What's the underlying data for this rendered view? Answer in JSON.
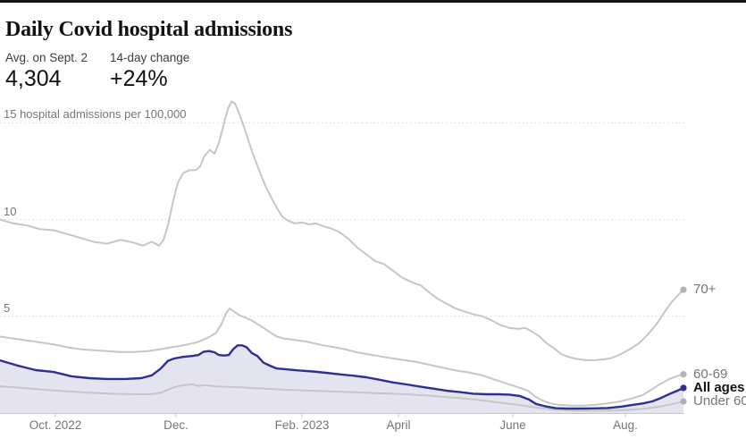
{
  "header": {
    "title": "Daily Covid hospital admissions",
    "stats": [
      {
        "label": "Avg. on Sept. 2",
        "value": "4,304"
      },
      {
        "label": "14-day change",
        "value": "+24%"
      }
    ]
  },
  "chart_data": {
    "type": "line",
    "title": "Daily Covid hospital admissions",
    "ylabel": "hospital admissions per 100,000",
    "xlim": [
      0,
      765
    ],
    "ylim": [
      0,
      17.05
    ],
    "grid": "dotted horizontal",
    "legend_position": "right-of-line-endpoints",
    "colors": {
      "gray_line": "#c6c6c6",
      "gray_dot": "#b3b3b3",
      "blue_line": "#2e2e96",
      "area_fill": "#e4e4f1",
      "gridline": "#d9d9d9",
      "axis": "#c9c9c9",
      "axis_text": "#767676",
      "label_gray": "#757575",
      "label_black": "#121212"
    },
    "yticks": [
      {
        "value": 5,
        "label": "5"
      },
      {
        "value": 10,
        "label": "10"
      },
      {
        "value": 15,
        "label": "15 hospital admissions per 100,000"
      }
    ],
    "xticks": [
      {
        "x": 62,
        "label": "Oct. 2022"
      },
      {
        "x": 197,
        "label": "Dec."
      },
      {
        "x": 338,
        "label": "Feb. 2023"
      },
      {
        "x": 446,
        "label": "April"
      },
      {
        "x": 574,
        "label": "June"
      },
      {
        "x": 700,
        "label": "Aug."
      }
    ],
    "series": [
      {
        "name": "70+",
        "color": "#c6c6c6",
        "width": 2,
        "area": false,
        "bold_label": false,
        "points": [
          [
            0,
            10.0
          ],
          [
            15,
            9.8
          ],
          [
            30,
            9.7
          ],
          [
            45,
            9.5
          ],
          [
            60,
            9.45
          ],
          [
            75,
            9.25
          ],
          [
            90,
            9.05
          ],
          [
            105,
            8.85
          ],
          [
            120,
            8.75
          ],
          [
            135,
            8.95
          ],
          [
            150,
            8.8
          ],
          [
            160,
            8.65
          ],
          [
            170,
            8.85
          ],
          [
            178,
            8.65
          ],
          [
            183,
            8.95
          ],
          [
            188,
            9.7
          ],
          [
            193,
            10.8
          ],
          [
            199,
            11.9
          ],
          [
            205,
            12.4
          ],
          [
            212,
            12.55
          ],
          [
            219,
            12.55
          ],
          [
            224,
            12.75
          ],
          [
            229,
            13.3
          ],
          [
            235,
            13.6
          ],
          [
            240,
            13.4
          ],
          [
            245,
            13.95
          ],
          [
            250,
            14.85
          ],
          [
            255,
            15.7
          ],
          [
            259,
            16.1
          ],
          [
            263,
            16.0
          ],
          [
            268,
            15.45
          ],
          [
            273,
            14.8
          ],
          [
            278,
            14.1
          ],
          [
            283,
            13.4
          ],
          [
            288,
            12.8
          ],
          [
            293,
            12.2
          ],
          [
            298,
            11.65
          ],
          [
            304,
            11.1
          ],
          [
            310,
            10.6
          ],
          [
            316,
            10.15
          ],
          [
            322,
            9.95
          ],
          [
            330,
            9.8
          ],
          [
            338,
            9.85
          ],
          [
            346,
            9.75
          ],
          [
            354,
            9.8
          ],
          [
            362,
            9.65
          ],
          [
            370,
            9.55
          ],
          [
            380,
            9.35
          ],
          [
            390,
            9.0
          ],
          [
            400,
            8.55
          ],
          [
            410,
            8.2
          ],
          [
            420,
            7.85
          ],
          [
            430,
            7.7
          ],
          [
            440,
            7.35
          ],
          [
            450,
            7.0
          ],
          [
            457,
            6.85
          ],
          [
            464,
            6.7
          ],
          [
            471,
            6.6
          ],
          [
            480,
            6.25
          ],
          [
            490,
            5.9
          ],
          [
            500,
            5.65
          ],
          [
            510,
            5.4
          ],
          [
            520,
            5.25
          ],
          [
            530,
            5.1
          ],
          [
            540,
            5.0
          ],
          [
            550,
            4.8
          ],
          [
            560,
            4.55
          ],
          [
            570,
            4.4
          ],
          [
            580,
            4.35
          ],
          [
            588,
            4.4
          ],
          [
            596,
            4.2
          ],
          [
            604,
            3.95
          ],
          [
            612,
            3.6
          ],
          [
            620,
            3.35
          ],
          [
            628,
            3.05
          ],
          [
            636,
            2.9
          ],
          [
            645,
            2.8
          ],
          [
            655,
            2.73
          ],
          [
            665,
            2.73
          ],
          [
            675,
            2.77
          ],
          [
            685,
            2.85
          ],
          [
            695,
            3.05
          ],
          [
            705,
            3.3
          ],
          [
            715,
            3.6
          ],
          [
            725,
            4.05
          ],
          [
            735,
            4.6
          ],
          [
            745,
            5.3
          ],
          [
            752,
            5.75
          ],
          [
            758,
            6.05
          ],
          [
            765,
            6.37
          ]
        ]
      },
      {
        "name": "60-69",
        "color": "#c6c6c6",
        "width": 2,
        "area": false,
        "bold_label": false,
        "points": [
          [
            0,
            3.95
          ],
          [
            15,
            3.85
          ],
          [
            30,
            3.75
          ],
          [
            45,
            3.65
          ],
          [
            60,
            3.55
          ],
          [
            75,
            3.4
          ],
          [
            90,
            3.3
          ],
          [
            105,
            3.25
          ],
          [
            120,
            3.2
          ],
          [
            135,
            3.15
          ],
          [
            150,
            3.15
          ],
          [
            165,
            3.2
          ],
          [
            180,
            3.3
          ],
          [
            192,
            3.4
          ],
          [
            200,
            3.45
          ],
          [
            210,
            3.55
          ],
          [
            220,
            3.65
          ],
          [
            228,
            3.8
          ],
          [
            235,
            3.95
          ],
          [
            242,
            4.15
          ],
          [
            248,
            4.6
          ],
          [
            253,
            5.15
          ],
          [
            257,
            5.4
          ],
          [
            262,
            5.25
          ],
          [
            268,
            5.05
          ],
          [
            274,
            4.95
          ],
          [
            281,
            4.8
          ],
          [
            288,
            4.6
          ],
          [
            295,
            4.4
          ],
          [
            303,
            4.15
          ],
          [
            310,
            3.95
          ],
          [
            318,
            3.85
          ],
          [
            326,
            3.8
          ],
          [
            334,
            3.75
          ],
          [
            342,
            3.7
          ],
          [
            352,
            3.6
          ],
          [
            362,
            3.5
          ],
          [
            374,
            3.4
          ],
          [
            386,
            3.3
          ],
          [
            398,
            3.15
          ],
          [
            410,
            3.05
          ],
          [
            423,
            2.95
          ],
          [
            436,
            2.85
          ],
          [
            450,
            2.75
          ],
          [
            465,
            2.65
          ],
          [
            480,
            2.5
          ],
          [
            495,
            2.35
          ],
          [
            510,
            2.2
          ],
          [
            525,
            2.1
          ],
          [
            540,
            1.95
          ],
          [
            552,
            1.75
          ],
          [
            562,
            1.6
          ],
          [
            572,
            1.45
          ],
          [
            582,
            1.3
          ],
          [
            591,
            1.15
          ],
          [
            599,
            0.85
          ],
          [
            607,
            0.65
          ],
          [
            616,
            0.5
          ],
          [
            626,
            0.42
          ],
          [
            640,
            0.38
          ],
          [
            653,
            0.38
          ],
          [
            666,
            0.42
          ],
          [
            680,
            0.5
          ],
          [
            694,
            0.6
          ],
          [
            707,
            0.75
          ],
          [
            719,
            0.92
          ],
          [
            729,
            1.2
          ],
          [
            739,
            1.5
          ],
          [
            749,
            1.75
          ],
          [
            757,
            1.9
          ],
          [
            765,
            2.0
          ]
        ]
      },
      {
        "name": "Under 60",
        "color": "#c6c6c6",
        "width": 2,
        "area": false,
        "bold_label": false,
        "points": [
          [
            0,
            1.38
          ],
          [
            25,
            1.3
          ],
          [
            50,
            1.2
          ],
          [
            75,
            1.12
          ],
          [
            100,
            1.05
          ],
          [
            125,
            1.0
          ],
          [
            150,
            0.97
          ],
          [
            168,
            0.97
          ],
          [
            180,
            1.05
          ],
          [
            190,
            1.25
          ],
          [
            200,
            1.4
          ],
          [
            208,
            1.45
          ],
          [
            216,
            1.48
          ],
          [
            222,
            1.4
          ],
          [
            230,
            1.44
          ],
          [
            240,
            1.38
          ],
          [
            255,
            1.35
          ],
          [
            270,
            1.33
          ],
          [
            285,
            1.28
          ],
          [
            300,
            1.25
          ],
          [
            320,
            1.2
          ],
          [
            340,
            1.17
          ],
          [
            360,
            1.13
          ],
          [
            380,
            1.1
          ],
          [
            400,
            1.07
          ],
          [
            420,
            1.03
          ],
          [
            440,
            1.0
          ],
          [
            460,
            0.95
          ],
          [
            480,
            0.9
          ],
          [
            500,
            0.82
          ],
          [
            520,
            0.75
          ],
          [
            540,
            0.66
          ],
          [
            555,
            0.56
          ],
          [
            570,
            0.48
          ],
          [
            583,
            0.4
          ],
          [
            595,
            0.32
          ],
          [
            607,
            0.25
          ],
          [
            620,
            0.18
          ],
          [
            635,
            0.14
          ],
          [
            650,
            0.12
          ],
          [
            665,
            0.12
          ],
          [
            680,
            0.13
          ],
          [
            695,
            0.15
          ],
          [
            710,
            0.18
          ],
          [
            725,
            0.25
          ],
          [
            738,
            0.33
          ],
          [
            750,
            0.44
          ],
          [
            758,
            0.52
          ],
          [
            765,
            0.6
          ]
        ]
      },
      {
        "name": "All ages",
        "color": "#2e2e96",
        "width": 2.4,
        "area": true,
        "bold_label": true,
        "points": [
          [
            0,
            2.72
          ],
          [
            20,
            2.45
          ],
          [
            40,
            2.22
          ],
          [
            60,
            2.12
          ],
          [
            80,
            1.9
          ],
          [
            100,
            1.8
          ],
          [
            120,
            1.76
          ],
          [
            140,
            1.76
          ],
          [
            158,
            1.8
          ],
          [
            170,
            1.95
          ],
          [
            180,
            2.3
          ],
          [
            188,
            2.7
          ],
          [
            195,
            2.82
          ],
          [
            205,
            2.9
          ],
          [
            215,
            2.95
          ],
          [
            222,
            3.0
          ],
          [
            228,
            3.17
          ],
          [
            234,
            3.2
          ],
          [
            240,
            3.14
          ],
          [
            245,
            3.0
          ],
          [
            251,
            2.97
          ],
          [
            256,
            3.0
          ],
          [
            261,
            3.3
          ],
          [
            266,
            3.5
          ],
          [
            271,
            3.5
          ],
          [
            276,
            3.4
          ],
          [
            282,
            3.1
          ],
          [
            288,
            2.95
          ],
          [
            295,
            2.6
          ],
          [
            302,
            2.45
          ],
          [
            310,
            2.3
          ],
          [
            320,
            2.26
          ],
          [
            335,
            2.2
          ],
          [
            350,
            2.15
          ],
          [
            365,
            2.08
          ],
          [
            380,
            2.0
          ],
          [
            395,
            1.93
          ],
          [
            410,
            1.85
          ],
          [
            425,
            1.72
          ],
          [
            440,
            1.58
          ],
          [
            455,
            1.48
          ],
          [
            470,
            1.37
          ],
          [
            485,
            1.26
          ],
          [
            500,
            1.15
          ],
          [
            515,
            1.08
          ],
          [
            530,
            1.0
          ],
          [
            545,
            0.97
          ],
          [
            558,
            0.97
          ],
          [
            570,
            0.95
          ],
          [
            582,
            0.88
          ],
          [
            592,
            0.7
          ],
          [
            600,
            0.47
          ],
          [
            610,
            0.35
          ],
          [
            622,
            0.25
          ],
          [
            635,
            0.23
          ],
          [
            650,
            0.23
          ],
          [
            665,
            0.24
          ],
          [
            680,
            0.26
          ],
          [
            695,
            0.33
          ],
          [
            708,
            0.42
          ],
          [
            720,
            0.5
          ],
          [
            730,
            0.6
          ],
          [
            740,
            0.78
          ],
          [
            750,
            1.0
          ],
          [
            758,
            1.15
          ],
          [
            765,
            1.3
          ]
        ]
      }
    ]
  }
}
